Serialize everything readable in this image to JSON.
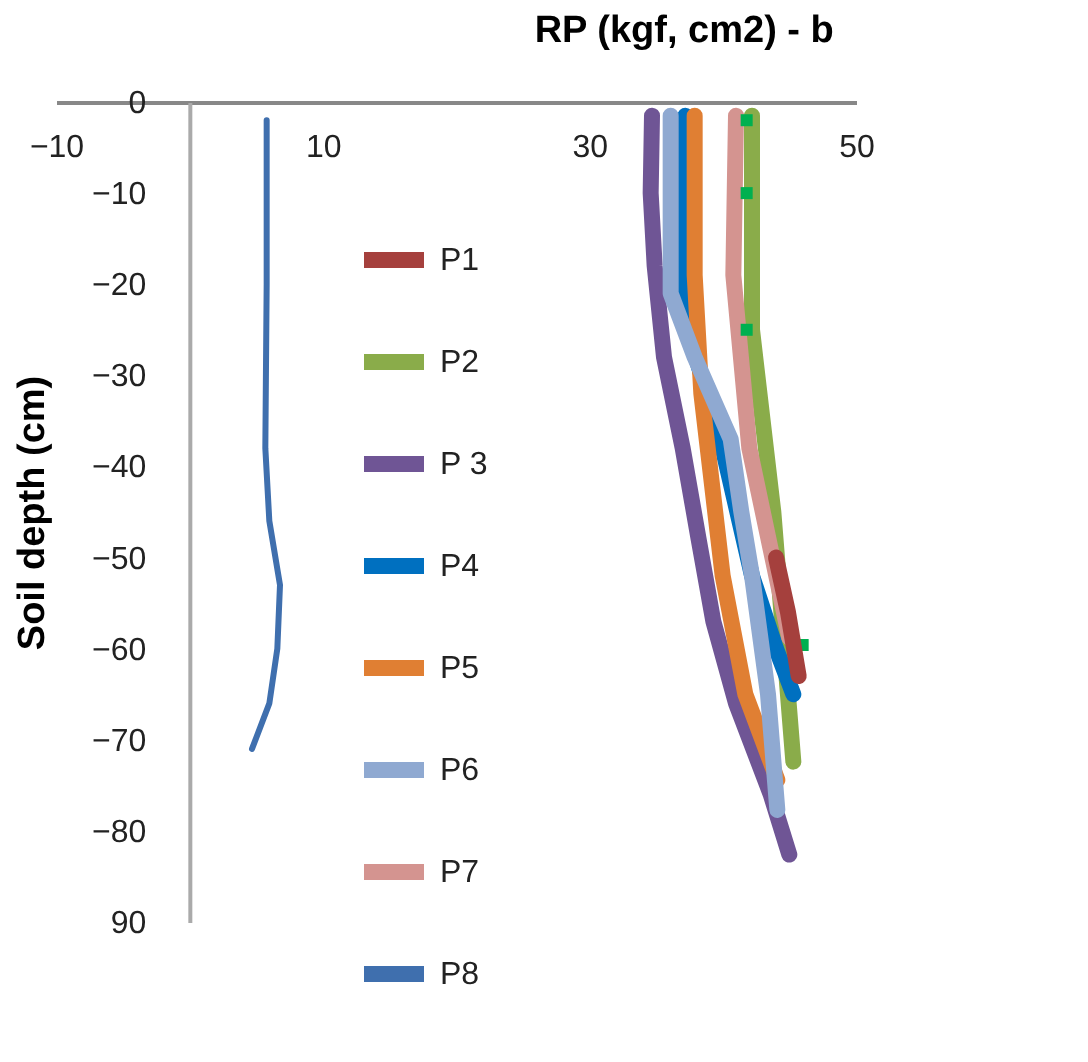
{
  "chart_data": {
    "type": "line",
    "title": "RP (kgf, cm2) - b",
    "ylabel": "Soil depth  (cm)",
    "xlim": [
      -10,
      50
    ],
    "xticks": [
      -10,
      10,
      30,
      50
    ],
    "ylim": [
      -90,
      0
    ],
    "yticks": [
      0,
      -10,
      -20,
      -30,
      -40,
      -50,
      -60,
      -70,
      -80,
      {
        "value": -90,
        "label": "90"
      }
    ],
    "grid": false,
    "legend": "left",
    "marker": "none",
    "line_style": "solid",
    "series": [
      {
        "name": "P1",
        "color": "#a5403d",
        "x": [
          44.0,
          44.9,
          45.7
        ],
        "values": [
          -50,
          -56,
          -63
        ]
      },
      {
        "name": "P2",
        "color": "#8aac4a",
        "x": [
          42.2,
          42.2,
          43.8,
          45.3
        ],
        "values": [
          -1.5,
          -25,
          -45,
          -72.4
        ]
      },
      {
        "name": "P 3",
        "color": "#6f5595",
        "x": [
          34.7,
          34.6,
          34.9,
          35.6,
          37.0,
          38.2,
          39.3,
          41.0,
          43.6,
          45.0
        ],
        "values": [
          -1.5,
          -10,
          -18,
          -28,
          -38,
          -48,
          -57,
          -66,
          -76,
          -82.6
        ]
      },
      {
        "name": "P4",
        "color": "#0070c0",
        "x": [
          37.2,
          37.1,
          37.0,
          38.0,
          40.0,
          42.2,
          44.0,
          45.3
        ],
        "values": [
          -1.5,
          -10,
          -19,
          -28,
          -38,
          -52,
          -60,
          -65
        ]
      },
      {
        "name": "P5",
        "color": "#e07f33",
        "x": [
          37.9,
          37.9,
          38.4,
          40.0,
          41.7,
          44.1
        ],
        "values": [
          -1.5,
          -19,
          -32,
          -52,
          -65,
          -74.4
        ]
      },
      {
        "name": "P6",
        "color": "#8fa9d1",
        "x": [
          36.1,
          36.1,
          36.1,
          37.9,
          40.6,
          41.4,
          42.2,
          43.4,
          44.1
        ],
        "values": [
          -1.5,
          -10,
          -21,
          -28,
          -37,
          -45,
          -52,
          -65,
          -77.7
        ]
      },
      {
        "name": "P7",
        "color": "#d49490",
        "x": [
          41.0,
          40.8,
          42.0,
          45.0
        ],
        "values": [
          -1.5,
          -19,
          -38,
          -58.8
        ]
      },
      {
        "name": "P8",
        "color": "#3f6fae",
        "x": [
          5.8,
          5.8,
          5.7,
          6.0,
          6.8,
          6.6,
          6.0,
          4.7
        ],
        "values": [
          -2,
          -20,
          -38,
          -46,
          -53,
          -60,
          -66,
          -71
        ]
      },
      {
        "type": "scatter",
        "marker": "square",
        "color": "#00b050",
        "x": [
          41.8,
          41.8,
          41.8,
          46.0
        ],
        "values": [
          -2,
          -10,
          -25,
          -59.6
        ]
      }
    ]
  }
}
